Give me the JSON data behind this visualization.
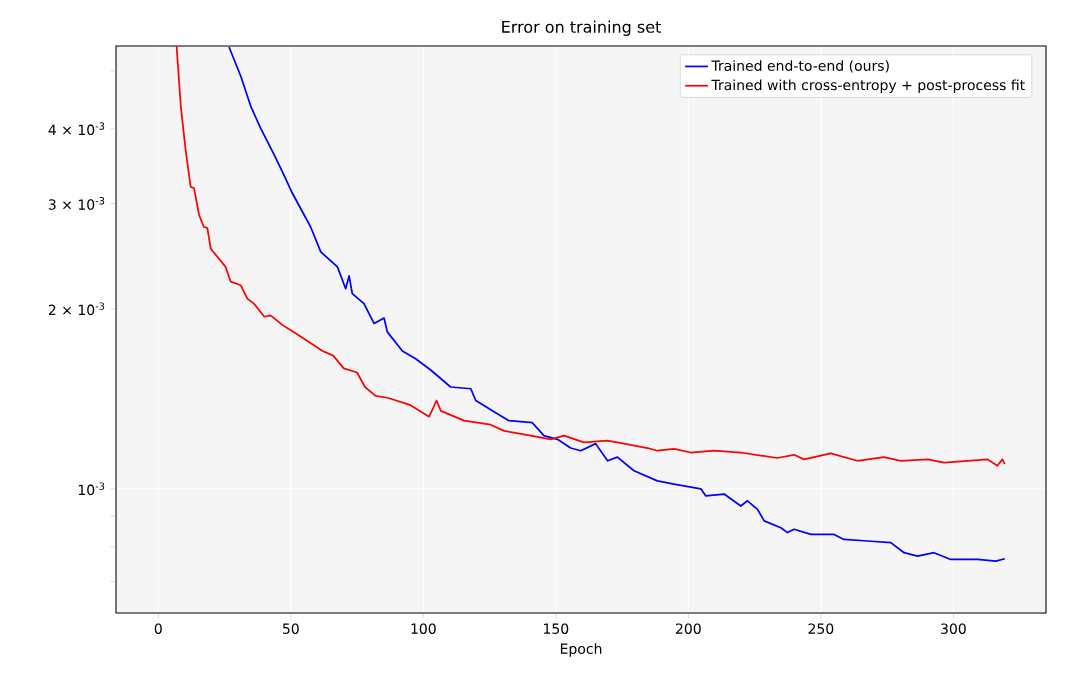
{
  "chart_data": {
    "type": "line",
    "title": "Error on training set",
    "xlabel": "Epoch",
    "xlim": [
      -15.95,
      334.95
    ],
    "xticks": [
      0,
      50,
      100,
      150,
      200,
      250,
      300
    ],
    "ylim": [
      0.00062,
      0.0055
    ],
    "log": "y",
    "yticks": [
      {
        "value": 0.0007,
        "label": null
      },
      {
        "value": 0.0008,
        "label": null
      },
      {
        "value": 0.0009,
        "label": null
      },
      {
        "value": 0.001,
        "label": "10$^{-3}$"
      },
      {
        "value": 0.002,
        "label": "2 × 10$^{-3}$"
      },
      {
        "value": 0.003,
        "label": "3 × 10$^{-3}$"
      },
      {
        "value": 0.004,
        "label": "4 × 10$^{-3}$"
      },
      {
        "value": 0.005,
        "label": null
      }
    ],
    "grid": true,
    "legend": "top right",
    "series": [
      {
        "name": "Trained end-to-end (ours)",
        "color": "#0000ff",
        "x": [
          26.7,
          31.1,
          34.9,
          38.6,
          43.7,
          46.8,
          50.6,
          57.5,
          61.3,
          67.6,
          70.7,
          72,
          73.2,
          77.6,
          81.4,
          85.2,
          86.4,
          92.1,
          97.1,
          102.8,
          110.3,
          117.9,
          119.8,
          127.3,
          132.3,
          141.1,
          145.5,
          150.6,
          155.6,
          159.4,
          165,
          169.5,
          173.2,
          179.5,
          188.3,
          194.6,
          204.7,
          206.6,
          213.5,
          219.8,
          222.3,
          226.1,
          228.6,
          234.9,
          237.4,
          239.9,
          246.2,
          255,
          258.7,
          267.6,
          276.4,
          281.4,
          286.5,
          292.7,
          299,
          309.1,
          316,
          319.4
        ],
        "values": [
          0.00548,
          0.0049,
          0.00436,
          0.00401,
          0.00362,
          0.00339,
          0.00312,
          0.00274,
          0.00249,
          0.00235,
          0.00216,
          0.00227,
          0.00212,
          0.00204,
          0.00189,
          0.00193,
          0.00183,
          0.0017,
          0.00165,
          0.00158,
          0.00148,
          0.00147,
          0.001405,
          0.00134,
          0.0013,
          0.00129,
          0.001227,
          0.00121,
          0.00117,
          0.001158,
          0.00119,
          0.001114,
          0.00113,
          0.001072,
          0.001031,
          0.001018,
          0.001,
          0.000973,
          0.00098,
          0.000936,
          0.000955,
          0.000924,
          0.000884,
          0.000861,
          0.000845,
          0.000856,
          0.000839,
          0.000839,
          0.000823,
          0.000818,
          0.000813,
          0.000782,
          0.000772,
          0.000782,
          0.000762,
          0.000762,
          0.000757,
          0.000764
        ]
      },
      {
        "name": "Trained with cross-entropy + post-process fit",
        "color": "#ff0000",
        "x": [
          6.9,
          8.5,
          10.3,
          12.2,
          13.5,
          15.4,
          17.2,
          18.5,
          19.8,
          25.4,
          27.3,
          31.1,
          33.6,
          36.1,
          40,
          42.4,
          46.8,
          51.8,
          56,
          62,
          66,
          70,
          75,
          78,
          82,
          86.5,
          95.2,
          102.2,
          105,
          106.6,
          115.4,
          125.4,
          130.5,
          140.5,
          148.1,
          153.1,
          160.6,
          169.5,
          175.7,
          184.6,
          188.3,
          194.6,
          200.9,
          209.7,
          219.8,
          233.5,
          239.9,
          243.7,
          253.7,
          263.8,
          273.8,
          280.2,
          290.3,
          296.5,
          305.3,
          312.9,
          316.6,
          318.5,
          319.4
        ],
        "values": [
          0.0055,
          0.00436,
          0.00369,
          0.0032,
          0.00318,
          0.00287,
          0.00274,
          0.00273,
          0.00252,
          0.00235,
          0.00222,
          0.00219,
          0.00208,
          0.00204,
          0.00194,
          0.00195,
          0.00188,
          0.00182,
          0.00177,
          0.0017,
          0.00167,
          0.00159,
          0.001565,
          0.00148,
          0.00143,
          0.00142,
          0.00138,
          0.00132,
          0.001405,
          0.00135,
          0.0013,
          0.00128,
          0.00125,
          0.001227,
          0.00121,
          0.001227,
          0.001196,
          0.001204,
          0.00119,
          0.00117,
          0.001158,
          0.001166,
          0.00115,
          0.001158,
          0.00115,
          0.001126,
          0.00114,
          0.00112,
          0.001146,
          0.001114,
          0.00113,
          0.001114,
          0.00112,
          0.001106,
          0.001114,
          0.00112,
          0.001093,
          0.00112,
          0.0011
        ]
      }
    ]
  }
}
